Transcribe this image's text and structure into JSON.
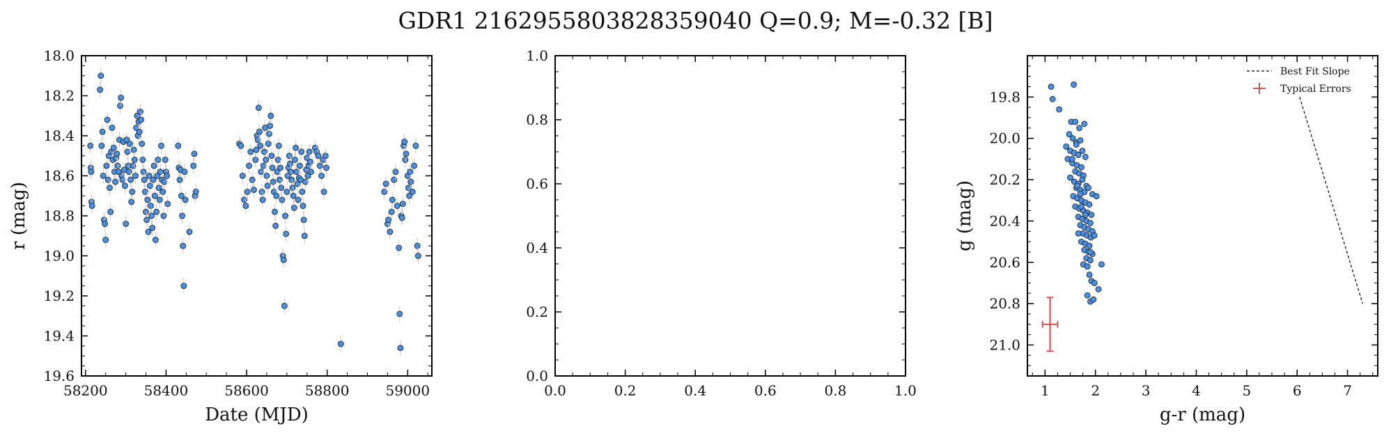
{
  "figure": {
    "title": "GDR1 2162955803828359040  Q=0.9; M=-0.32 [B]"
  },
  "colors": {
    "point_fill": "#4a90e2",
    "point_edge": "#1a1a1a",
    "errorbar": "#c8c8c8",
    "typical_error": "#d9534f",
    "axis": "#000000"
  },
  "chart_data": [
    {
      "type": "scatter",
      "name": "light-curve",
      "xlabel": "Date (MJD)",
      "ylabel": "r (mag)",
      "xlim": [
        58190,
        59060
      ],
      "ylim": [
        19.6,
        18.0
      ],
      "y_inverted": true,
      "xticks": [
        58200,
        58400,
        58600,
        58800,
        59000
      ],
      "xtick_labels": [
        "58200",
        "58400",
        "58600",
        "58800",
        "59000"
      ],
      "yticks": [
        18.0,
        18.2,
        18.4,
        18.6,
        18.8,
        19.0,
        19.2,
        19.4,
        19.6
      ],
      "ytick_labels": [
        "18.0",
        "18.2",
        "18.4",
        "18.6",
        "18.8",
        "19.0",
        "19.2",
        "19.4",
        "19.6"
      ],
      "error": 0.04,
      "points": [
        [
          58212,
          18.45
        ],
        [
          58213,
          18.56
        ],
        [
          58214,
          18.58
        ],
        [
          58215,
          18.73
        ],
        [
          58216,
          18.75
        ],
        [
          58236,
          18.17
        ],
        [
          58238,
          18.1
        ],
        [
          58240,
          18.45
        ],
        [
          58242,
          18.38
        ],
        [
          58244,
          18.6
        ],
        [
          58246,
          18.82
        ],
        [
          58248,
          18.84
        ],
        [
          58250,
          18.92
        ],
        [
          58252,
          18.55
        ],
        [
          58254,
          18.32
        ],
        [
          58256,
          18.62
        ],
        [
          58258,
          18.5
        ],
        [
          58260,
          18.66
        ],
        [
          58262,
          18.78
        ],
        [
          58264,
          18.48
        ],
        [
          58266,
          18.36
        ],
        [
          58268,
          18.52
        ],
        [
          58270,
          18.46
        ],
        [
          58272,
          18.58
        ],
        [
          58274,
          18.63
        ],
        [
          58276,
          18.51
        ],
        [
          58278,
          18.49
        ],
        [
          58280,
          18.55
        ],
        [
          58282,
          18.58
        ],
        [
          58284,
          18.42
        ],
        [
          58286,
          18.25
        ],
        [
          58288,
          18.21
        ],
        [
          58290,
          18.6
        ],
        [
          58292,
          18.62
        ],
        [
          58294,
          18.43
        ],
        [
          58296,
          18.57
        ],
        [
          58298,
          18.65
        ],
        [
          58300,
          18.84
        ],
        [
          58302,
          18.42
        ],
        [
          58304,
          18.48
        ],
        [
          58306,
          18.55
        ],
        [
          58308,
          18.58
        ],
        [
          58310,
          18.44
        ],
        [
          58312,
          18.62
        ],
        [
          58314,
          18.73
        ],
        [
          58316,
          18.68
        ],
        [
          58318,
          18.55
        ],
        [
          58320,
          18.47
        ],
        [
          58322,
          18.52
        ],
        [
          58324,
          18.6
        ],
        [
          58326,
          18.36
        ],
        [
          58328,
          18.3
        ],
        [
          58330,
          18.4
        ],
        [
          58332,
          18.33
        ],
        [
          58334,
          18.38
        ],
        [
          58336,
          18.28
        ],
        [
          58338,
          18.32
        ],
        [
          58340,
          18.44
        ],
        [
          58342,
          18.52
        ],
        [
          58344,
          18.58
        ],
        [
          58346,
          18.62
        ],
        [
          58348,
          18.68
        ],
        [
          58350,
          18.78
        ],
        [
          58352,
          18.82
        ],
        [
          58354,
          18.72
        ],
        [
          58356,
          18.88
        ],
        [
          58358,
          18.6
        ],
        [
          58360,
          18.65
        ],
        [
          58362,
          18.75
        ],
        [
          58364,
          18.8
        ],
        [
          58366,
          18.86
        ],
        [
          58368,
          18.62
        ],
        [
          58370,
          18.55
        ],
        [
          58372,
          18.7
        ],
        [
          58374,
          18.92
        ],
        [
          58376,
          18.78
        ],
        [
          58378,
          18.6
        ],
        [
          58380,
          18.52
        ],
        [
          58382,
          18.66
        ],
        [
          58384,
          18.72
        ],
        [
          58386,
          18.58
        ],
        [
          58388,
          18.45
        ],
        [
          58390,
          18.62
        ],
        [
          58392,
          18.68
        ],
        [
          58394,
          18.8
        ],
        [
          58396,
          18.63
        ],
        [
          58398,
          18.52
        ],
        [
          58400,
          18.58
        ],
        [
          58402,
          18.6
        ],
        [
          58404,
          18.74
        ],
        [
          58430,
          18.45
        ],
        [
          58432,
          18.56
        ],
        [
          58434,
          18.62
        ],
        [
          58436,
          18.57
        ],
        [
          58438,
          18.7
        ],
        [
          58440,
          18.8
        ],
        [
          58442,
          18.95
        ],
        [
          58444,
          19.15
        ],
        [
          58446,
          18.58
        ],
        [
          58448,
          18.72
        ],
        [
          58458,
          18.88
        ],
        [
          58468,
          18.55
        ],
        [
          58470,
          18.49
        ],
        [
          58472,
          18.7
        ],
        [
          58474,
          18.68
        ],
        [
          58582,
          18.44
        ],
        [
          58586,
          18.45
        ],
        [
          58590,
          18.6
        ],
        [
          58594,
          18.72
        ],
        [
          58598,
          18.75
        ],
        [
          58602,
          18.68
        ],
        [
          58606,
          18.55
        ],
        [
          58610,
          18.48
        ],
        [
          58614,
          18.62
        ],
        [
          58618,
          18.67
        ],
        [
          58622,
          18.52
        ],
        [
          58624,
          18.47
        ],
        [
          58626,
          18.4
        ],
        [
          58628,
          18.42
        ],
        [
          58630,
          18.26
        ],
        [
          58632,
          18.38
        ],
        [
          58634,
          18.45
        ],
        [
          58636,
          18.58
        ],
        [
          58638,
          18.68
        ],
        [
          58640,
          18.72
        ],
        [
          58642,
          18.55
        ],
        [
          58644,
          18.48
        ],
        [
          58646,
          18.36
        ],
        [
          58648,
          18.52
        ],
        [
          58650,
          18.6
        ],
        [
          58652,
          18.65
        ],
        [
          58654,
          18.44
        ],
        [
          58656,
          18.39
        ],
        [
          58658,
          18.35
        ],
        [
          58660,
          18.3
        ],
        [
          58662,
          18.5
        ],
        [
          58664,
          18.56
        ],
        [
          58666,
          18.63
        ],
        [
          58668,
          18.68
        ],
        [
          58670,
          18.78
        ],
        [
          58672,
          18.85
        ],
        [
          58674,
          18.7
        ],
        [
          58676,
          18.58
        ],
        [
          58678,
          18.52
        ],
        [
          58680,
          18.45
        ],
        [
          58682,
          18.62
        ],
        [
          58684,
          18.56
        ],
        [
          58686,
          18.66
        ],
        [
          58688,
          18.72
        ],
        [
          58690,
          19.0
        ],
        [
          58692,
          19.02
        ],
        [
          58694,
          19.25
        ],
        [
          58696,
          18.8
        ],
        [
          58698,
          18.89
        ],
        [
          58700,
          18.68
        ],
        [
          58702,
          18.6
        ],
        [
          58704,
          18.56
        ],
        [
          58706,
          18.5
        ],
        [
          58708,
          18.54
        ],
        [
          58710,
          18.58
        ],
        [
          58712,
          18.62
        ],
        [
          58714,
          18.66
        ],
        [
          58716,
          18.7
        ],
        [
          58718,
          18.76
        ],
        [
          58720,
          18.52
        ],
        [
          58722,
          18.46
        ],
        [
          58724,
          18.58
        ],
        [
          58726,
          18.64
        ],
        [
          58728,
          18.72
        ],
        [
          58730,
          18.61
        ],
        [
          58732,
          18.55
        ],
        [
          58734,
          18.62
        ],
        [
          58736,
          18.48
        ],
        [
          58738,
          18.68
        ],
        [
          58740,
          18.75
        ],
        [
          58742,
          18.82
        ],
        [
          58744,
          18.9
        ],
        [
          58746,
          18.63
        ],
        [
          58748,
          18.57
        ],
        [
          58750,
          18.51
        ],
        [
          58752,
          18.6
        ],
        [
          58754,
          18.55
        ],
        [
          58756,
          18.48
        ],
        [
          58758,
          18.53
        ],
        [
          58760,
          18.58
        ],
        [
          58770,
          18.46
        ],
        [
          58774,
          18.48
        ],
        [
          58778,
          18.5
        ],
        [
          58782,
          18.55
        ],
        [
          58786,
          18.6
        ],
        [
          58790,
          18.52
        ],
        [
          58792,
          18.68
        ],
        [
          58796,
          18.5
        ],
        [
          58798,
          18.56
        ],
        [
          58834,
          19.44
        ],
        [
          58942,
          18.68
        ],
        [
          58946,
          18.64
        ],
        [
          58950,
          18.84
        ],
        [
          58952,
          18.82
        ],
        [
          58956,
          18.88
        ],
        [
          58960,
          18.78
        ],
        [
          58962,
          18.72
        ],
        [
          58966,
          18.62
        ],
        [
          58970,
          18.58
        ],
        [
          58974,
          18.75
        ],
        [
          58978,
          18.96
        ],
        [
          58980,
          19.29
        ],
        [
          58982,
          19.46
        ],
        [
          58984,
          18.8
        ],
        [
          58986,
          18.81
        ],
        [
          58988,
          18.74
        ],
        [
          58990,
          18.45
        ],
        [
          58992,
          18.43
        ],
        [
          58994,
          18.52
        ],
        [
          58996,
          18.49
        ],
        [
          59000,
          18.6
        ],
        [
          59002,
          18.66
        ],
        [
          59004,
          18.7
        ],
        [
          59006,
          18.58
        ],
        [
          59008,
          18.63
        ],
        [
          59012,
          18.68
        ],
        [
          59016,
          18.55
        ],
        [
          59020,
          18.45
        ],
        [
          59024,
          18.95
        ],
        [
          59026,
          19.0
        ]
      ]
    },
    {
      "type": "scatter",
      "name": "empty",
      "xlabel": "",
      "ylabel": "",
      "xlim": [
        0.0,
        1.0
      ],
      "ylim": [
        0.0,
        1.0
      ],
      "xticks": [
        0.0,
        0.2,
        0.4,
        0.6,
        0.8,
        1.0
      ],
      "xtick_labels": [
        "0.0",
        "0.2",
        "0.4",
        "0.6",
        "0.8",
        "1.0"
      ],
      "yticks": [
        0.0,
        0.2,
        0.4,
        0.6,
        0.8,
        1.0
      ],
      "ytick_labels": [
        "0.0",
        "0.2",
        "0.4",
        "0.6",
        "0.8",
        "1.0"
      ],
      "points": []
    },
    {
      "type": "scatter",
      "name": "color-magnitude",
      "xlabel": "g-r (mag)",
      "ylabel": "g (mag)",
      "xlim": [
        0.65,
        7.6
      ],
      "ylim": [
        21.15,
        19.6
      ],
      "y_inverted": true,
      "xticks": [
        1,
        2,
        3,
        4,
        5,
        6,
        7
      ],
      "xtick_labels": [
        "1",
        "2",
        "3",
        "4",
        "5",
        "6",
        "7"
      ],
      "yticks": [
        19.8,
        20.0,
        20.2,
        20.4,
        20.6,
        20.8,
        21.0
      ],
      "ytick_labels": [
        "19.8",
        "20.0",
        "20.2",
        "20.4",
        "20.6",
        "20.8",
        "21.0"
      ],
      "legend": {
        "position": "top-right",
        "entries": [
          {
            "label": "Best Fit Slope",
            "style": "dashed-line"
          },
          {
            "label": "Typical Errors",
            "style": "errorbar"
          }
        ]
      },
      "best_fit_line": {
        "x": [
          6.05,
          7.3
        ],
        "y": [
          19.8,
          20.8
        ]
      },
      "typical_error": {
        "x": 1.1,
        "y": 20.9,
        "xerr": 0.15,
        "yerr": 0.13
      },
      "points": [
        [
          1.12,
          19.75
        ],
        [
          1.15,
          19.81
        ],
        [
          1.28,
          19.86
        ],
        [
          1.57,
          19.74
        ],
        [
          1.52,
          19.92
        ],
        [
          1.6,
          19.92
        ],
        [
          1.78,
          19.93
        ],
        [
          1.68,
          19.95
        ],
        [
          1.48,
          19.98
        ],
        [
          1.55,
          20.0
        ],
        [
          1.62,
          20.02
        ],
        [
          1.7,
          20.01
        ],
        [
          1.42,
          20.04
        ],
        [
          1.5,
          20.06
        ],
        [
          1.58,
          20.07
        ],
        [
          1.66,
          20.08
        ],
        [
          1.74,
          20.06
        ],
        [
          1.8,
          20.09
        ],
        [
          1.45,
          20.1
        ],
        [
          1.54,
          20.12
        ],
        [
          1.63,
          20.13
        ],
        [
          1.72,
          20.14
        ],
        [
          1.6,
          20.16
        ],
        [
          1.68,
          20.17
        ],
        [
          1.76,
          20.18
        ],
        [
          1.5,
          20.19
        ],
        [
          1.58,
          20.21
        ],
        [
          1.66,
          20.22
        ],
        [
          1.74,
          20.2
        ],
        [
          1.82,
          20.23
        ],
        [
          1.62,
          20.24
        ],
        [
          1.7,
          20.25
        ],
        [
          1.78,
          20.26
        ],
        [
          1.86,
          20.24
        ],
        [
          1.94,
          20.27
        ],
        [
          2.02,
          20.28
        ],
        [
          1.56,
          20.28
        ],
        [
          1.64,
          20.29
        ],
        [
          1.72,
          20.3
        ],
        [
          1.8,
          20.31
        ],
        [
          1.88,
          20.32
        ],
        [
          1.6,
          20.33
        ],
        [
          1.68,
          20.34
        ],
        [
          1.76,
          20.35
        ],
        [
          1.84,
          20.36
        ],
        [
          1.92,
          20.37
        ],
        [
          1.66,
          20.38
        ],
        [
          1.74,
          20.39
        ],
        [
          1.82,
          20.4
        ],
        [
          1.9,
          20.41
        ],
        [
          1.7,
          20.42
        ],
        [
          1.78,
          20.43
        ],
        [
          1.86,
          20.44
        ],
        [
          1.94,
          20.45
        ],
        [
          1.75,
          20.46
        ],
        [
          1.83,
          20.47
        ],
        [
          1.91,
          20.48
        ],
        [
          1.72,
          20.5
        ],
        [
          1.8,
          20.51
        ],
        [
          1.88,
          20.52
        ],
        [
          1.78,
          20.54
        ],
        [
          1.86,
          20.55
        ],
        [
          1.94,
          20.56
        ],
        [
          1.82,
          20.58
        ],
        [
          1.9,
          20.59
        ],
        [
          1.76,
          20.61
        ],
        [
          1.84,
          20.62
        ],
        [
          2.12,
          20.61
        ],
        [
          1.88,
          20.66
        ],
        [
          1.92,
          20.69
        ],
        [
          1.98,
          20.7
        ],
        [
          2.06,
          20.73
        ],
        [
          1.84,
          20.76
        ],
        [
          1.9,
          20.79
        ],
        [
          1.96,
          20.78
        ],
        [
          1.54,
          20.1
        ],
        [
          1.64,
          20.23
        ],
        [
          1.72,
          20.33
        ],
        [
          1.66,
          20.46
        ],
        [
          1.9,
          20.55
        ],
        [
          1.62,
          20.03
        ],
        [
          1.7,
          20.27
        ],
        [
          1.8,
          20.37
        ],
        [
          1.98,
          20.47
        ]
      ]
    }
  ]
}
